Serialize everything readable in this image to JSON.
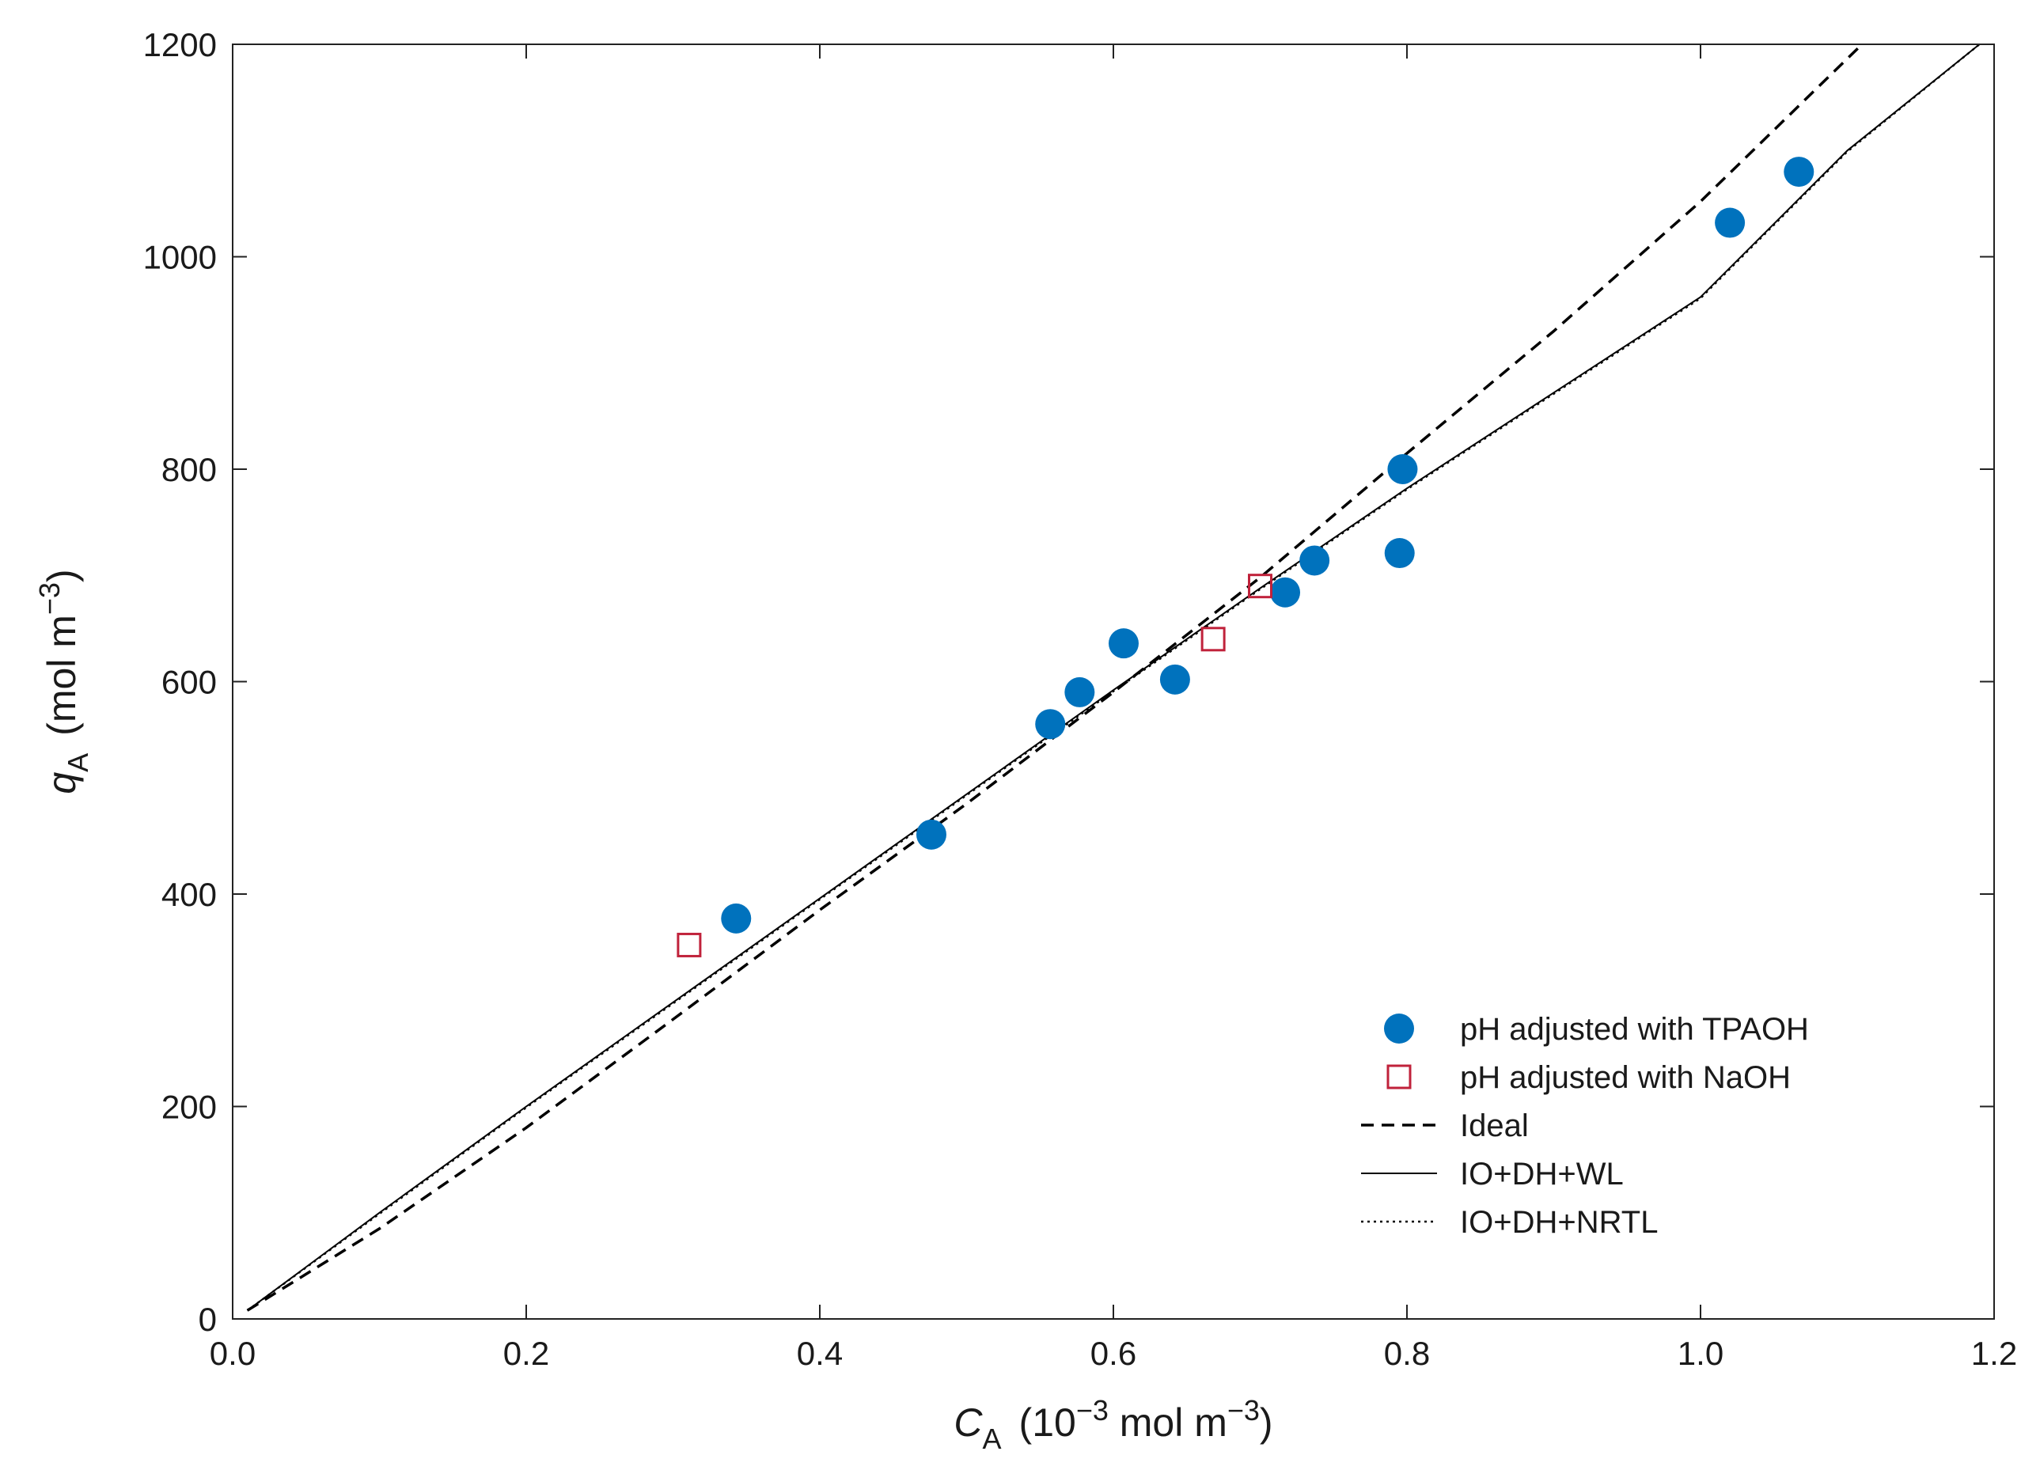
{
  "chart_data": {
    "type": "scatter",
    "title": "",
    "xlabel": {
      "symbol": "C",
      "subscript": "A",
      "units_prefix": "(10",
      "units_exponent": "−3",
      "units_suffix": " mol m",
      "units_exponent2": "−3",
      "units_close": ")"
    },
    "ylabel": {
      "symbol": "q",
      "subscript": "A",
      "units_prefix": "(mol m",
      "units_exponent": "−3",
      "units_close": ")"
    },
    "xlim": [
      0.0,
      1.2
    ],
    "ylim": [
      0,
      1200
    ],
    "x_ticks": [
      0.0,
      0.2,
      0.4,
      0.6,
      0.8,
      1.0,
      1.2
    ],
    "x_tick_labels": [
      "0.0",
      "0.2",
      "0.4",
      "0.6",
      "0.8",
      "1.0",
      "1.2"
    ],
    "y_ticks": [
      0,
      200,
      400,
      600,
      800,
      1000,
      1200
    ],
    "y_tick_labels": [
      "0",
      "200",
      "400",
      "600",
      "800",
      "1000",
      "1200"
    ],
    "grid": false,
    "legend_position": "bottom-right",
    "series": [
      {
        "name": "pH adjusted with TPAOH",
        "kind": "markers",
        "marker": "filled-circle",
        "color": "#0072BD",
        "x": [
          0.343,
          0.476,
          0.557,
          0.577,
          0.607,
          0.642,
          0.717,
          0.737,
          0.795,
          0.797,
          1.02,
          1.067
        ],
        "y": [
          377,
          456,
          560,
          590,
          636,
          602,
          684,
          714,
          721,
          800,
          1032,
          1080
        ]
      },
      {
        "name": "pH adjusted with NaOH",
        "kind": "markers",
        "marker": "open-square",
        "color": "#C0223B",
        "x": [
          0.311,
          0.668,
          0.7
        ],
        "y": [
          352,
          640,
          690
        ]
      },
      {
        "name": "Ideal",
        "kind": "line",
        "style": "dashed",
        "color": "#000000",
        "x": [
          0.01,
          0.1,
          0.2,
          0.3,
          0.4,
          0.5,
          0.6,
          0.7,
          0.8,
          0.9,
          1.0,
          1.11
        ],
        "y": [
          8,
          85,
          180,
          282,
          385,
          485,
          590,
          698,
          815,
          930,
          1052,
          1200
        ]
      },
      {
        "name": "IO+DH+WL",
        "kind": "line",
        "style": "solid",
        "color": "#000000",
        "x": [
          0.01,
          0.1,
          0.2,
          0.3,
          0.4,
          0.5,
          0.6,
          0.7,
          0.8,
          0.9,
          1.0,
          1.1,
          1.19
        ],
        "y": [
          8,
          100,
          200,
          298,
          396,
          494,
          592,
          688,
          782,
          872,
          962,
          1100,
          1200
        ]
      },
      {
        "name": "IO+DH+NRTL",
        "kind": "line",
        "style": "dotted",
        "color": "#000000",
        "x": [
          0.01,
          0.1,
          0.2,
          0.3,
          0.4,
          0.5,
          0.6,
          0.7,
          0.8,
          0.9,
          1.0,
          1.1,
          1.19
        ],
        "y": [
          8,
          99,
          199,
          297,
          395,
          493,
          591,
          687,
          781,
          871,
          961,
          1099,
          1200
        ]
      }
    ]
  }
}
